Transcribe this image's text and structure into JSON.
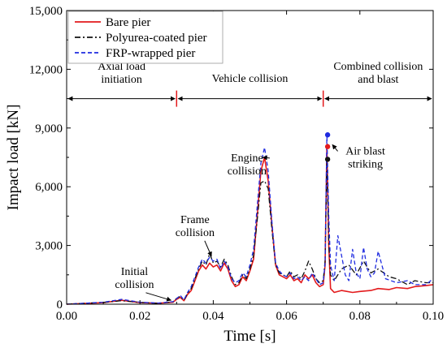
{
  "chart_data": {
    "type": "line",
    "title": "",
    "xlabel": "Time [s]",
    "ylabel": "Impact load [kN]",
    "xlim": [
      0,
      0.1
    ],
    "ylim": [
      0,
      15000
    ],
    "x_ticks": [
      0,
      0.02,
      0.04,
      0.06,
      0.08,
      0.1
    ],
    "x_tick_labels": [
      "0.00",
      "0.02",
      "0.04",
      "0.06",
      "0.08",
      "0.10"
    ],
    "y_ticks": [
      0,
      3000,
      6000,
      9000,
      12000,
      15000
    ],
    "y_tick_labels": [
      "0",
      "3,000",
      "6,000",
      "9,000",
      "12,000",
      "15,000"
    ],
    "grid": false,
    "legend_position": "top-left",
    "series": [
      {
        "name": "Bare pier",
        "color": "#e31a1c",
        "dash": "solid",
        "x": [
          0,
          0.01,
          0.015,
          0.02,
          0.025,
          0.029,
          0.03,
          0.031,
          0.032,
          0.033,
          0.034,
          0.035,
          0.036,
          0.037,
          0.038,
          0.039,
          0.04,
          0.041,
          0.042,
          0.043,
          0.044,
          0.045,
          0.046,
          0.047,
          0.048,
          0.049,
          0.05,
          0.051,
          0.052,
          0.053,
          0.054,
          0.055,
          0.056,
          0.057,
          0.058,
          0.059,
          0.06,
          0.061,
          0.062,
          0.063,
          0.064,
          0.065,
          0.066,
          0.067,
          0.068,
          0.069,
          0.07,
          0.0705,
          0.071,
          0.0715,
          0.072,
          0.073,
          0.075,
          0.078,
          0.08,
          0.083,
          0.085,
          0.088,
          0.09,
          0.093,
          0.095,
          0.098,
          0.1
        ],
        "values": [
          0,
          80,
          200,
          80,
          50,
          100,
          250,
          350,
          180,
          500,
          700,
          1200,
          1700,
          2000,
          1800,
          2100,
          1900,
          2000,
          1700,
          2100,
          1800,
          1200,
          900,
          1000,
          1400,
          1200,
          1700,
          2300,
          4500,
          6800,
          7500,
          6300,
          4000,
          2000,
          1500,
          1400,
          1300,
          1500,
          1200,
          1300,
          1100,
          1500,
          1300,
          1500,
          1100,
          900,
          1000,
          2000,
          8100,
          3000,
          800,
          600,
          700,
          600,
          650,
          700,
          800,
          750,
          850,
          800,
          900,
          950,
          1000
        ]
      },
      {
        "name": "Polyurea-coated pier",
        "color": "#111111",
        "dash": "dashdot",
        "x": [
          0,
          0.01,
          0.015,
          0.02,
          0.025,
          0.029,
          0.03,
          0.031,
          0.032,
          0.033,
          0.034,
          0.035,
          0.036,
          0.037,
          0.038,
          0.039,
          0.04,
          0.041,
          0.042,
          0.043,
          0.044,
          0.045,
          0.046,
          0.047,
          0.048,
          0.049,
          0.05,
          0.051,
          0.052,
          0.053,
          0.054,
          0.055,
          0.056,
          0.057,
          0.058,
          0.059,
          0.06,
          0.061,
          0.062,
          0.063,
          0.064,
          0.065,
          0.066,
          0.067,
          0.068,
          0.069,
          0.07,
          0.0705,
          0.071,
          0.0715,
          0.072,
          0.073,
          0.075,
          0.077,
          0.079,
          0.081,
          0.083,
          0.085,
          0.088,
          0.09,
          0.093,
          0.095,
          0.098,
          0.1
        ],
        "values": [
          0,
          90,
          180,
          90,
          40,
          120,
          300,
          400,
          200,
          550,
          800,
          1300,
          1800,
          2200,
          2000,
          2600,
          2100,
          2200,
          1900,
          2300,
          2000,
          1400,
          1000,
          1100,
          1500,
          1300,
          1800,
          2500,
          4300,
          6200,
          6300,
          5900,
          3800,
          2000,
          1600,
          1500,
          1400,
          1700,
          1400,
          1500,
          1300,
          1700,
          2200,
          1800,
          1300,
          1100,
          1200,
          2200,
          7400,
          3200,
          1500,
          1200,
          1800,
          2000,
          1500,
          2200,
          1600,
          1800,
          1400,
          1300,
          1000,
          1200,
          1100,
          1100
        ]
      },
      {
        "name": "FRP-wrapped pier",
        "color": "#1f2be0",
        "dash": "dashed",
        "x": [
          0,
          0.01,
          0.015,
          0.02,
          0.025,
          0.029,
          0.03,
          0.031,
          0.032,
          0.033,
          0.034,
          0.035,
          0.036,
          0.037,
          0.038,
          0.039,
          0.04,
          0.041,
          0.042,
          0.043,
          0.044,
          0.045,
          0.046,
          0.047,
          0.048,
          0.049,
          0.05,
          0.051,
          0.052,
          0.053,
          0.054,
          0.055,
          0.056,
          0.057,
          0.058,
          0.059,
          0.06,
          0.061,
          0.062,
          0.063,
          0.064,
          0.065,
          0.066,
          0.067,
          0.068,
          0.069,
          0.07,
          0.0705,
          0.071,
          0.0715,
          0.072,
          0.073,
          0.074,
          0.075,
          0.076,
          0.077,
          0.078,
          0.079,
          0.08,
          0.081,
          0.082,
          0.083,
          0.084,
          0.085,
          0.087,
          0.09,
          0.093,
          0.095,
          0.098,
          0.1
        ],
        "values": [
          0,
          100,
          250,
          100,
          60,
          130,
          280,
          450,
          220,
          600,
          900,
          1400,
          1900,
          2300,
          2100,
          2400,
          2200,
          2300,
          1800,
          2200,
          1900,
          1300,
          1100,
          1200,
          1600,
          1400,
          2000,
          2800,
          5000,
          7200,
          8000,
          6800,
          4200,
          2100,
          1700,
          1500,
          1400,
          1600,
          1300,
          1400,
          1200,
          1400,
          1200,
          1600,
          1300,
          1000,
          1100,
          2100,
          8700,
          4500,
          2000,
          1200,
          3500,
          2500,
          1500,
          1200,
          2800,
          1600,
          1300,
          2900,
          1800,
          1400,
          1600,
          2700,
          1300,
          1100,
          1200,
          1000,
          1000,
          1300
        ]
      }
    ],
    "peak_markers": [
      {
        "x": 0.0712,
        "y": 8650,
        "color": "#1f2be0"
      },
      {
        "x": 0.0712,
        "y": 8050,
        "color": "#e31a1c"
      },
      {
        "x": 0.0712,
        "y": 7400,
        "color": "#111111"
      }
    ],
    "phase_boundaries": [
      0.03,
      0.07
    ],
    "phase_arrow_y": 10500,
    "phase_labels": [
      {
        "lines": [
          "Axial load",
          "initiation"
        ],
        "x": 0.015,
        "y": 11350
      },
      {
        "lines": [
          "Vehicle collision"
        ],
        "x": 0.05,
        "y": 11350
      },
      {
        "lines": [
          "Combined collision",
          "and blast"
        ],
        "x": 0.085,
        "y": 11350
      }
    ],
    "annotations": [
      {
        "lines": [
          "Initial",
          "collision"
        ],
        "tx": 0.0185,
        "ty": 1500,
        "ax": 0.0285,
        "ay": 200
      },
      {
        "lines": [
          "Frame",
          "collision"
        ],
        "tx": 0.035,
        "ty": 4150,
        "ax": 0.0395,
        "ay": 2450
      },
      {
        "lines": [
          "Engine",
          "collision"
        ],
        "tx": 0.0492,
        "ty": 7300,
        "ax": 0.0535,
        "ay": 7500
      },
      {
        "lines": [
          "Air blast",
          "striking"
        ],
        "tx": 0.0815,
        "ty": 7650,
        "ax": 0.0725,
        "ay": 8150
      }
    ]
  }
}
